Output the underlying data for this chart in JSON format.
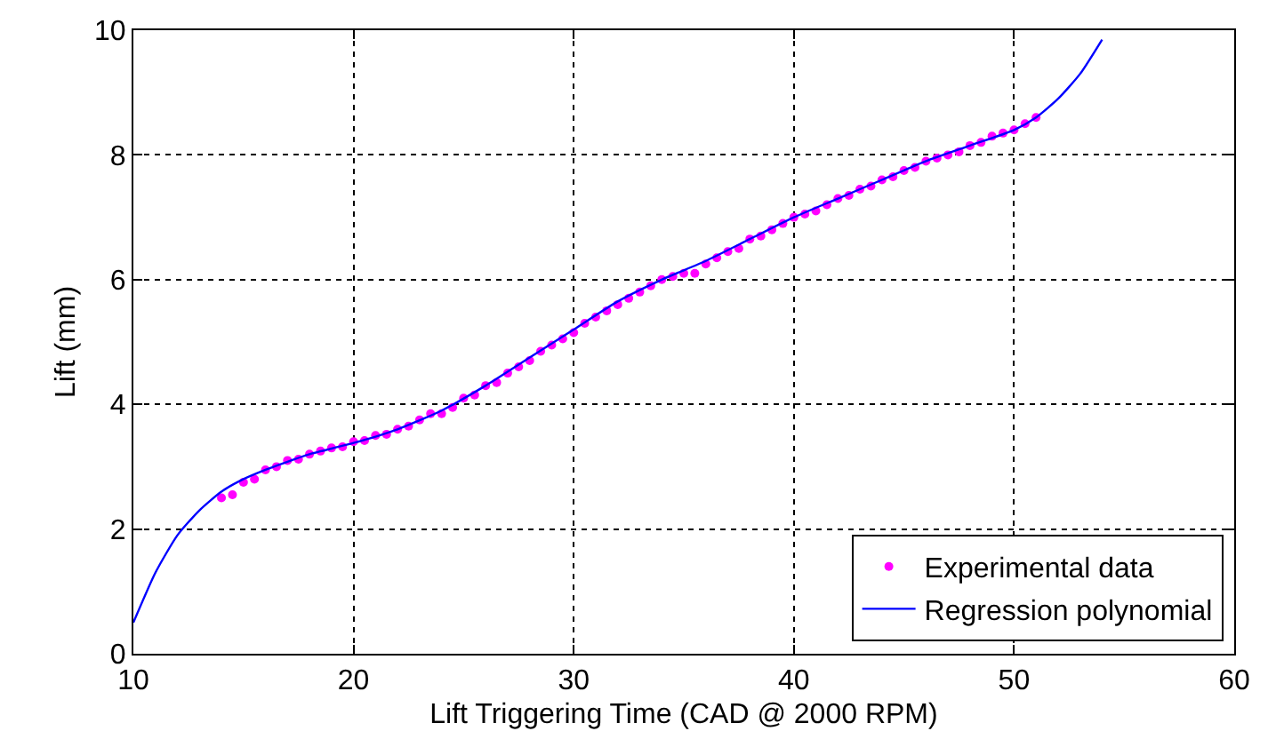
{
  "chart_data": {
    "type": "scatter",
    "xlabel": "Lift Triggering Time (CAD @ 2000 RPM)",
    "ylabel": "Lift (mm)",
    "xlim": [
      10,
      60
    ],
    "xticks": [
      10,
      20,
      30,
      40,
      50,
      60
    ],
    "ylim": [
      0,
      10
    ],
    "yticks": [
      0,
      2,
      4,
      6,
      8,
      10
    ],
    "grid": true,
    "legend": "bottom right",
    "series": [
      {
        "name": "Experimental data",
        "marker": "circle",
        "color": "#ff00ff",
        "x": [
          14,
          14.5,
          15,
          15.5,
          16,
          16.5,
          17,
          17.5,
          18,
          18.5,
          19,
          19.5,
          20,
          20.5,
          21,
          21.5,
          22,
          22.5,
          23,
          23.5,
          24,
          24.5,
          25,
          25.5,
          26,
          26.5,
          27,
          27.5,
          28,
          28.5,
          29,
          29.5,
          30,
          30.5,
          31,
          31.5,
          32,
          32.5,
          33,
          33.5,
          34,
          34.5,
          35,
          35.5,
          36,
          36.5,
          37,
          37.5,
          38,
          38.5,
          39,
          39.5,
          40,
          40.5,
          41,
          41.5,
          42,
          42.5,
          43,
          43.5,
          44,
          44.5,
          45,
          45.5,
          46,
          46.5,
          47,
          47.5,
          48,
          48.5,
          49,
          49.5,
          50,
          50.5,
          51
        ],
        "values": [
          2.5,
          2.55,
          2.75,
          2.8,
          2.95,
          3.0,
          3.1,
          3.12,
          3.2,
          3.25,
          3.3,
          3.32,
          3.4,
          3.42,
          3.5,
          3.52,
          3.6,
          3.65,
          3.75,
          3.85,
          3.85,
          3.95,
          4.1,
          4.15,
          4.3,
          4.35,
          4.5,
          4.6,
          4.7,
          4.85,
          4.95,
          5.05,
          5.15,
          5.3,
          5.4,
          5.5,
          5.6,
          5.7,
          5.8,
          5.9,
          6.0,
          6.05,
          6.1,
          6.1,
          6.25,
          6.35,
          6.45,
          6.5,
          6.65,
          6.7,
          6.8,
          6.9,
          7.0,
          7.05,
          7.1,
          7.2,
          7.3,
          7.35,
          7.45,
          7.5,
          7.6,
          7.65,
          7.75,
          7.8,
          7.9,
          7.95,
          8.0,
          8.05,
          8.15,
          8.2,
          8.3,
          8.35,
          8.4,
          8.5,
          8.6
        ]
      },
      {
        "name": "Regression polynomial",
        "type": "line",
        "marker": "none",
        "line_style": "solid",
        "color": "#0000ff",
        "x": [
          10,
          11,
          12,
          13,
          14,
          15,
          16,
          17,
          18,
          20,
          22,
          24,
          26,
          28,
          30,
          32,
          34,
          36,
          38,
          40,
          42,
          44,
          46,
          48,
          50,
          51,
          52,
          53,
          54
        ],
        "values": [
          0.5,
          1.3,
          1.9,
          2.3,
          2.6,
          2.8,
          2.95,
          3.08,
          3.2,
          3.38,
          3.6,
          3.9,
          4.3,
          4.75,
          5.2,
          5.65,
          6.0,
          6.3,
          6.65,
          7.0,
          7.3,
          7.6,
          7.9,
          8.15,
          8.4,
          8.6,
          8.9,
          9.3,
          9.85
        ]
      }
    ]
  }
}
